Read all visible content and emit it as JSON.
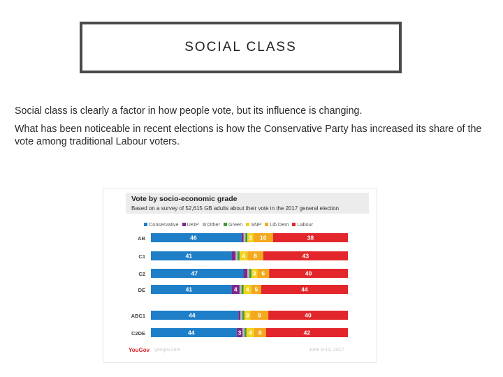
{
  "slide": {
    "title": "SOCIAL CLASS",
    "paragraphs": [
      "Social class is clearly a factor in how people vote, but its influence is changing.",
      "What has been noticeable in recent elections is how the Conservative Party has increased its share of the vote among traditional Labour voters."
    ]
  },
  "figure": {
    "logo": "YouGov",
    "url": "yougov.com",
    "date": "June 9-13, 2017"
  },
  "chart_data": {
    "type": "bar",
    "stacked": true,
    "orientation": "horizontal",
    "title": "Vote by socio-economic grade",
    "subtitle": "Based on a survey of 52,615 GB adults about their vote in the 2017 general election",
    "legend_position": "top",
    "colors": {
      "Conservative": "#1e7fc8",
      "UKIP": "#7b2a8a",
      "Other": "#b9b9b9",
      "Green": "#3a9a3a",
      "SNP": "#f3d21f",
      "Lib Dem": "#f4a91d",
      "Labour": "#e3262b"
    },
    "categories": [
      "AB",
      "C1",
      "C2",
      "DE",
      "ABC1",
      "C2DE"
    ],
    "series": [
      {
        "name": "Conservative",
        "values": [
          46,
          41,
          47,
          41,
          44,
          44
        ]
      },
      {
        "name": "UKIP",
        "values": [
          1,
          2,
          2,
          4,
          1,
          3
        ]
      },
      {
        "name": "Other",
        "values": [
          1,
          1,
          1,
          1,
          1,
          1
        ]
      },
      {
        "name": "Green",
        "values": [
          1,
          1,
          1,
          1,
          1,
          1
        ]
      },
      {
        "name": "SNP",
        "values": [
          3,
          4,
          3,
          4,
          3,
          4
        ]
      },
      {
        "name": "Lib Dem",
        "values": [
          10,
          8,
          6,
          5,
          9,
          6
        ]
      },
      {
        "name": "Labour",
        "values": [
          38,
          43,
          40,
          44,
          40,
          42
        ]
      }
    ],
    "labels": [
      [
        "46",
        "",
        "",
        "",
        "3",
        "10",
        "38"
      ],
      [
        "41",
        "",
        "",
        "",
        "4",
        "8",
        "43"
      ],
      [
        "47",
        "",
        "",
        "",
        "3",
        "6",
        "40"
      ],
      [
        "41",
        "4",
        "",
        "",
        "4",
        "5",
        "44"
      ],
      [
        "44",
        "",
        "",
        "",
        "3",
        "9",
        "40"
      ],
      [
        "44",
        "3",
        "",
        "",
        "4",
        "6",
        "42"
      ]
    ]
  }
}
